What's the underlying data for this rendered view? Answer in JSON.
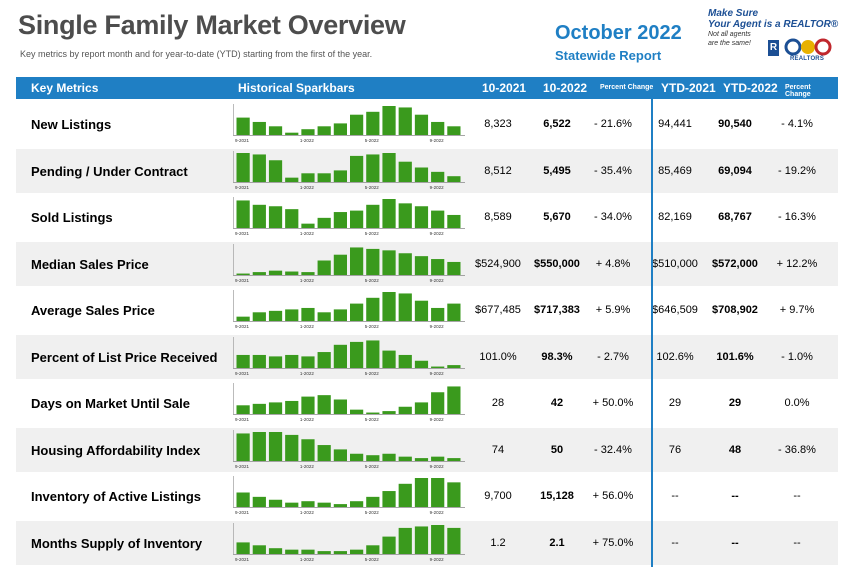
{
  "header": {
    "title": "Single Family Market Overview",
    "subtitle": "Key metrics by report month and for year-to-date (YTD) starting from the first of the year.",
    "month": "October 2022",
    "report": "Statewide Report"
  },
  "promo": {
    "line1": "Make Sure",
    "line2": "Your Agent is a REALTOR®",
    "line3": "Not all agents",
    "line4": "are the same!",
    "r_mark": "R",
    "org": "REALTORS"
  },
  "columns": {
    "metric": "Key Metrics",
    "spark": "Historical Sparkbars",
    "prev": "10-2021",
    "curr": "10-2022",
    "pct": "Percent Change",
    "ytd_prev": "YTD-2021",
    "ytd_curr": "YTD-2022",
    "ytd_pct": "Percent Change"
  },
  "spark_ticks": [
    "9-2021",
    "1-2022",
    "5-2022",
    "9-2022"
  ],
  "rows": [
    {
      "label": "New Listings",
      "prev": "8,323",
      "curr": "6,522",
      "pct": "- 21.6%",
      "ytd_prev": "94,441",
      "ytd_curr": "90,540",
      "ytd_pct": "- 4.1%",
      "spark": [
        60,
        45,
        30,
        8,
        20,
        30,
        40,
        70,
        80,
        100,
        95,
        70,
        45,
        30
      ]
    },
    {
      "label": "Pending / Under Contract",
      "prev": "8,512",
      "curr": "5,495",
      "pct": "- 35.4%",
      "ytd_prev": "85,469",
      "ytd_curr": "69,094",
      "ytd_pct": "- 19.2%",
      "spark": [
        100,
        95,
        75,
        15,
        30,
        30,
        40,
        90,
        95,
        100,
        70,
        50,
        35,
        20
      ]
    },
    {
      "label": "Sold Listings",
      "prev": "8,589",
      "curr": "5,670",
      "pct": "- 34.0%",
      "ytd_prev": "82,169",
      "ytd_curr": "68,767",
      "ytd_pct": "- 16.3%",
      "spark": [
        95,
        80,
        75,
        65,
        15,
        35,
        55,
        60,
        80,
        100,
        85,
        75,
        60,
        45
      ]
    },
    {
      "label": "Median Sales Price",
      "prev": "$524,900",
      "curr": "$550,000",
      "pct": "+ 4.8%",
      "ytd_prev": "$510,000",
      "ytd_curr": "$572,000",
      "ytd_pct": "+ 12.2%",
      "spark": [
        5,
        10,
        15,
        12,
        10,
        50,
        70,
        95,
        90,
        85,
        75,
        65,
        55,
        45
      ]
    },
    {
      "label": "Average Sales Price",
      "prev": "$677,485",
      "curr": "$717,383",
      "pct": "+ 5.9%",
      "ytd_prev": "$646,509",
      "ytd_curr": "$708,902",
      "ytd_pct": "+ 9.7%",
      "spark": [
        15,
        30,
        35,
        40,
        45,
        30,
        40,
        60,
        80,
        100,
        95,
        70,
        45,
        60
      ]
    },
    {
      "label": "Percent of List Price Received",
      "prev": "101.0%",
      "curr": "98.3%",
      "pct": "- 2.7%",
      "ytd_prev": "102.6%",
      "ytd_curr": "101.6%",
      "ytd_pct": "- 1.0%",
      "spark": [
        45,
        45,
        40,
        45,
        40,
        55,
        80,
        90,
        95,
        60,
        45,
        25,
        5,
        10
      ]
    },
    {
      "label": "Days on Market Until Sale",
      "prev": "28",
      "curr": "42",
      "pct": "+ 50.0%",
      "ytd_prev": "29",
      "ytd_curr": "29",
      "ytd_pct": "0.0%",
      "spark": [
        30,
        35,
        40,
        45,
        60,
        65,
        50,
        15,
        5,
        10,
        25,
        40,
        75,
        95
      ]
    },
    {
      "label": "Housing Affordability Index",
      "prev": "74",
      "curr": "50",
      "pct": "- 32.4%",
      "ytd_prev": "76",
      "ytd_curr": "48",
      "ytd_pct": "- 36.8%",
      "spark": [
        95,
        100,
        100,
        90,
        75,
        55,
        40,
        25,
        20,
        25,
        15,
        10,
        15,
        10
      ]
    },
    {
      "label": "Inventory of Active Listings",
      "prev": "9,700",
      "curr": "15,128",
      "pct": "+ 56.0%",
      "ytd_prev": "--",
      "ytd_curr": "--",
      "ytd_pct": "--",
      "spark": [
        50,
        35,
        25,
        15,
        20,
        15,
        10,
        20,
        35,
        55,
        80,
        100,
        100,
        85
      ]
    },
    {
      "label": "Months Supply of Inventory",
      "prev": "1.2",
      "curr": "2.1",
      "pct": "+ 75.0%",
      "ytd_prev": "--",
      "ytd_curr": "--",
      "ytd_pct": "--",
      "spark": [
        40,
        30,
        20,
        15,
        15,
        10,
        10,
        15,
        30,
        60,
        90,
        95,
        100,
        90
      ]
    }
  ],
  "colors": {
    "accent": "#1f7fc4",
    "bar": "#3a9a1d",
    "title": "#4d4d4d"
  }
}
